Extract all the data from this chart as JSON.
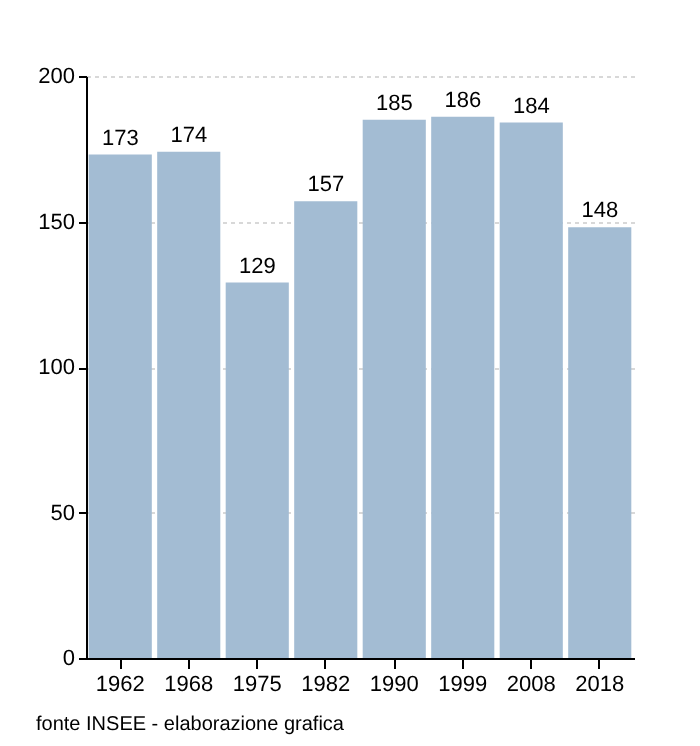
{
  "chart_data": {
    "type": "bar",
    "categories": [
      "1962",
      "1968",
      "1975",
      "1982",
      "1990",
      "1999",
      "2008",
      "2018"
    ],
    "values": [
      173,
      174,
      129,
      157,
      185,
      186,
      184,
      148
    ],
    "color": "#a3bcd3",
    "data_labels": true,
    "ylim": [
      0,
      200
    ],
    "yticks": [
      0,
      50,
      100,
      150,
      200
    ],
    "grid": "y",
    "annotations": [
      "fonte INSEE - elaborazione grafica"
    ]
  }
}
